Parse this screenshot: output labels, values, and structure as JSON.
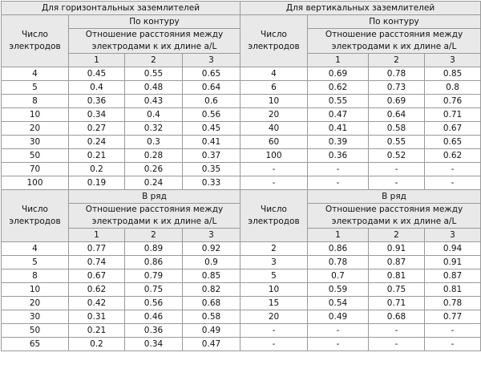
{
  "headers": {
    "horizontal": "Для горизонтальных заземлителей",
    "vertical": "Для вертикальных заземлителей",
    "contour": "По контуру",
    "row": "В ряд",
    "count_label": "Число электродов",
    "ratio_label": "Отношение расстояния между электродами к их длине a/L",
    "ratio_cols": [
      "1",
      "2",
      "3"
    ]
  },
  "contour": {
    "rows": [
      {
        "h": [
          "4",
          "0.45",
          "0.55",
          "0.65"
        ],
        "v": [
          "4",
          "0.69",
          "0.78",
          "0.85"
        ]
      },
      {
        "h": [
          "5",
          "0.4",
          "0.48",
          "0.64"
        ],
        "v": [
          "6",
          "0.62",
          "0.73",
          "0.8"
        ]
      },
      {
        "h": [
          "8",
          "0.36",
          "0.43",
          "0.6"
        ],
        "v": [
          "10",
          "0.55",
          "0.69",
          "0.76"
        ]
      },
      {
        "h": [
          "10",
          "0.34",
          "0.4",
          "0.56"
        ],
        "v": [
          "20",
          "0.47",
          "0.64",
          "0.71"
        ]
      },
      {
        "h": [
          "20",
          "0.27",
          "0.32",
          "0.45"
        ],
        "v": [
          "40",
          "0.41",
          "0.58",
          "0.67"
        ]
      },
      {
        "h": [
          "30",
          "0.24",
          "0.3",
          "0.41"
        ],
        "v": [
          "60",
          "0.39",
          "0.55",
          "0.65"
        ]
      },
      {
        "h": [
          "50",
          "0.21",
          "0.28",
          "0.37"
        ],
        "v": [
          "100",
          "0.36",
          "0.52",
          "0.62"
        ]
      },
      {
        "h": [
          "70",
          "0.2",
          "0.26",
          "0.35"
        ],
        "v": [
          "-",
          "-",
          "-",
          "-"
        ]
      },
      {
        "h": [
          "100",
          "0.19",
          "0.24",
          "0.33"
        ],
        "v": [
          "-",
          "-",
          "-",
          "-"
        ]
      }
    ]
  },
  "row": {
    "rows": [
      {
        "h": [
          "4",
          "0.77",
          "0.89",
          "0.92"
        ],
        "v": [
          "2",
          "0.86",
          "0.91",
          "0.94"
        ]
      },
      {
        "h": [
          "5",
          "0.74",
          "0.86",
          "0.9"
        ],
        "v": [
          "3",
          "0.78",
          "0.87",
          "0.91"
        ]
      },
      {
        "h": [
          "8",
          "0.67",
          "0.79",
          "0.85"
        ],
        "v": [
          "5",
          "0.7",
          "0.81",
          "0.87"
        ]
      },
      {
        "h": [
          "10",
          "0.62",
          "0.75",
          "0.82"
        ],
        "v": [
          "10",
          "0.59",
          "0.75",
          "0.81"
        ]
      },
      {
        "h": [
          "20",
          "0.42",
          "0.56",
          "0.68"
        ],
        "v": [
          "15",
          "0.54",
          "0.71",
          "0.78"
        ]
      },
      {
        "h": [
          "30",
          "0.31",
          "0.46",
          "0.58"
        ],
        "v": [
          "20",
          "0.49",
          "0.68",
          "0.77"
        ]
      },
      {
        "h": [
          "50",
          "0.21",
          "0.36",
          "0.49"
        ],
        "v": [
          "-",
          "-",
          "-",
          "-"
        ]
      },
      {
        "h": [
          "65",
          "0.2",
          "0.34",
          "0.47"
        ],
        "v": [
          "-",
          "-",
          "-",
          "-"
        ]
      }
    ]
  }
}
